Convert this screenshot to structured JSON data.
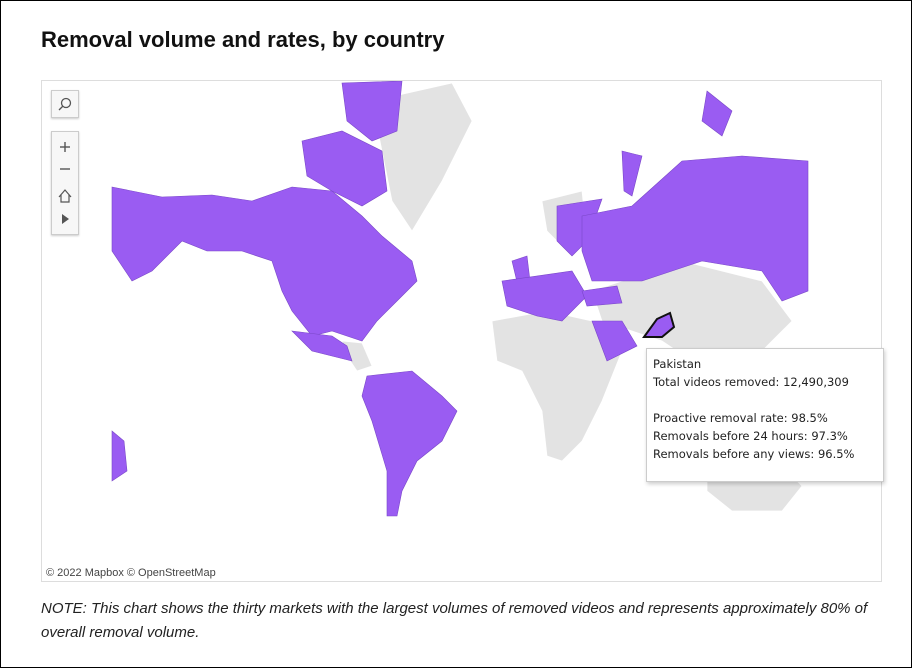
{
  "title": "Removal volume and rates, by country",
  "attribution": "© 2022 Mapbox  © OpenStreetMap",
  "tooltip": {
    "country": "Pakistan",
    "rows": [
      {
        "label": "Total videos removed:",
        "value": "12,490,309"
      },
      {
        "label": "Proactive removal rate:",
        "value": "98.5%"
      },
      {
        "label": "Removals before 24 hours:",
        "value": "97.3%"
      },
      {
        "label": "Removals before any views:",
        "value": "96.5%"
      }
    ]
  },
  "note": "NOTE: This chart shows the thirty markets with the largest volumes of removed videos and represents approximately 80% of overall removal volume."
}
